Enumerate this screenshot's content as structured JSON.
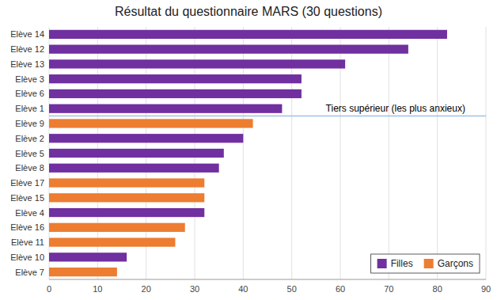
{
  "chart_data": {
    "type": "bar",
    "orientation": "horizontal",
    "title": "Résultat du questionnaire MARS (30 questions)",
    "categories": [
      "Elève 14",
      "Elève 12",
      "Elève 13",
      "Elève 3",
      "Elève 6",
      "Elève 1",
      "Elève 9",
      "Elève 2",
      "Elève 5",
      "Elève 8",
      "Elève 17",
      "Elève 15",
      "Elève 4",
      "Elève 16",
      "Elève 11",
      "Elève 10",
      "Elève 7"
    ],
    "values": [
      82,
      74,
      61,
      52,
      52,
      48,
      42,
      40,
      36,
      35,
      32,
      32,
      32,
      28,
      26,
      16,
      14
    ],
    "colors": [
      "#7030A0",
      "#7030A0",
      "#7030A0",
      "#7030A0",
      "#7030A0",
      "#7030A0",
      "#ED7D31",
      "#7030A0",
      "#7030A0",
      "#7030A0",
      "#ED7D31",
      "#ED7D31",
      "#7030A0",
      "#ED7D31",
      "#ED7D31",
      "#7030A0",
      "#ED7D31"
    ],
    "xlim": [
      0,
      90
    ],
    "xticks": [
      0,
      10,
      20,
      30,
      40,
      50,
      60,
      70,
      80,
      90
    ],
    "grid": true,
    "legend": "lower right",
    "legend_entries": [
      {
        "name": "Filles",
        "color": "#7030A0"
      },
      {
        "name": "Garçons",
        "color": "#ED7D31"
      }
    ],
    "separator": {
      "after": "Elève 1",
      "color": "#9DC3E6"
    },
    "annotations": [
      {
        "text": "Tiers supérieur (les plus anxieux)",
        "x": 57,
        "category": "Elève 1"
      }
    ]
  }
}
